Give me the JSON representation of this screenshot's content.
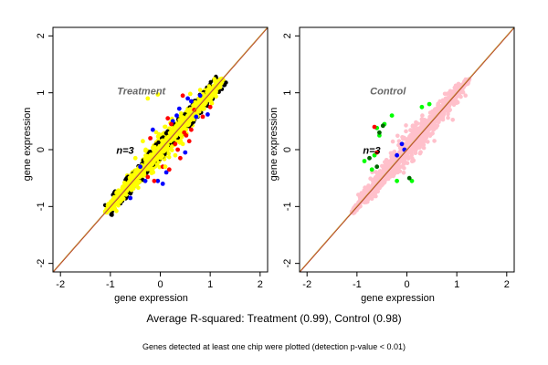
{
  "captions": {
    "main": "Average R-squared: Treatment (0.99), Control (0.98)",
    "sub": "Genes detected at least one chip were plotted (detection p-value < 0.01)"
  },
  "chart_data": [
    {
      "type": "scatter",
      "title": "Treatment",
      "annotation": "n=3",
      "xlabel": "gene expression",
      "ylabel": "gene expression",
      "xlim": [
        -2.15,
        2.15
      ],
      "ylim": [
        -2.15,
        2.15
      ],
      "x_ticks": [
        -2,
        -1,
        0,
        1,
        2
      ],
      "y_ticks": [
        -2,
        -1,
        0,
        1,
        2
      ],
      "grid": false,
      "legend": "none",
      "reference_line": {
        "slope": 1,
        "intercept": 0,
        "colors": [
          "#b22222",
          "#c8a046"
        ]
      },
      "point_cloud": {
        "x_range": [
          -1.1,
          1.25
        ],
        "spread": 0.14
      },
      "series": [
        {
          "color": "#0000ff",
          "values": [
            [
              0.55,
              0.9
            ],
            [
              0.72,
              0.58
            ],
            [
              -0.05,
              -0.55
            ],
            [
              0.95,
              0.62
            ],
            [
              0.12,
              -0.4
            ],
            [
              -0.3,
              -0.55
            ],
            [
              0.38,
              0.72
            ],
            [
              0.5,
              -0.05
            ],
            [
              0.25,
              0.5
            ],
            [
              -0.15,
              0.35
            ],
            [
              0.62,
              0.85
            ],
            [
              0.8,
              0.95
            ],
            [
              0.05,
              -0.6
            ],
            [
              -0.6,
              -0.85
            ],
            [
              0.33,
              0.6
            ],
            [
              -0.4,
              -0.3
            ]
          ]
        },
        {
          "color": "#ff0000",
          "values": [
            [
              0.45,
              0.95
            ],
            [
              0.48,
              0.3
            ],
            [
              0.52,
              0.25
            ],
            [
              0.35,
              0.0
            ],
            [
              0.05,
              -0.3
            ],
            [
              0.18,
              -0.35
            ],
            [
              0.68,
              0.7
            ],
            [
              0.85,
              0.58
            ],
            [
              0.22,
              0.45
            ],
            [
              -0.25,
              -0.48
            ],
            [
              0.4,
              -0.15
            ],
            [
              1.0,
              0.75
            ],
            [
              -0.2,
              0.2
            ],
            [
              0.58,
              0.15
            ],
            [
              0.62,
              0.35
            ],
            [
              -0.12,
              -0.55
            ],
            [
              0.3,
              0.1
            ],
            [
              0.15,
              0.55
            ]
          ]
        },
        {
          "color": "#ffff00",
          "values": [
            [
              0.8,
              1.05
            ],
            [
              -0.25,
              0.9
            ],
            [
              -0.05,
              0.97
            ],
            [
              0.6,
              0.98
            ],
            [
              0.1,
              -0.3
            ],
            [
              0.3,
              -0.1
            ],
            [
              -0.5,
              -0.15
            ],
            [
              0.45,
              0.1
            ],
            [
              -0.35,
              0.15
            ]
          ]
        }
      ]
    },
    {
      "type": "scatter",
      "title": "Control",
      "annotation": "n=3",
      "xlabel": "gene expression",
      "ylabel": "gene expression",
      "xlim": [
        -2.15,
        2.15
      ],
      "ylim": [
        -2.15,
        2.15
      ],
      "x_ticks": [
        -2,
        -1,
        0,
        1,
        2
      ],
      "y_ticks": [
        -2,
        -1,
        0,
        1,
        2
      ],
      "grid": false,
      "legend": "none",
      "reference_line": {
        "slope": 1,
        "intercept": 0,
        "colors": [
          "#b22222",
          "#c8a046"
        ]
      },
      "point_cloud": {
        "x_range": [
          -1.1,
          1.25
        ],
        "spread": 0.16
      },
      "series": [
        {
          "color": "#00ff00",
          "values": [
            [
              -0.6,
              0.38
            ],
            [
              -0.55,
              0.25
            ],
            [
              -0.85,
              -0.2
            ],
            [
              -0.7,
              -0.35
            ],
            [
              -0.45,
              0.45
            ],
            [
              -0.3,
              0.6
            ],
            [
              0.1,
              -0.55
            ],
            [
              -0.2,
              -0.55
            ],
            [
              0.45,
              0.8
            ],
            [
              0.3,
              0.75
            ],
            [
              -0.65,
              -0.1
            ]
          ]
        },
        {
          "color": "#006400",
          "values": [
            [
              -0.55,
              0.3
            ],
            [
              -0.6,
              -0.3
            ],
            [
              -0.48,
              0.42
            ],
            [
              0.05,
              -0.5
            ],
            [
              -0.75,
              -0.15
            ]
          ]
        },
        {
          "color": "#0000ff",
          "values": [
            [
              -0.1,
              0.1
            ],
            [
              -0.05,
              0.0
            ],
            [
              -0.2,
              -0.1
            ]
          ]
        },
        {
          "color": "#ff0000",
          "values": [
            [
              -0.65,
              0.4
            ],
            [
              -0.6,
              -0.05
            ]
          ]
        }
      ]
    }
  ]
}
